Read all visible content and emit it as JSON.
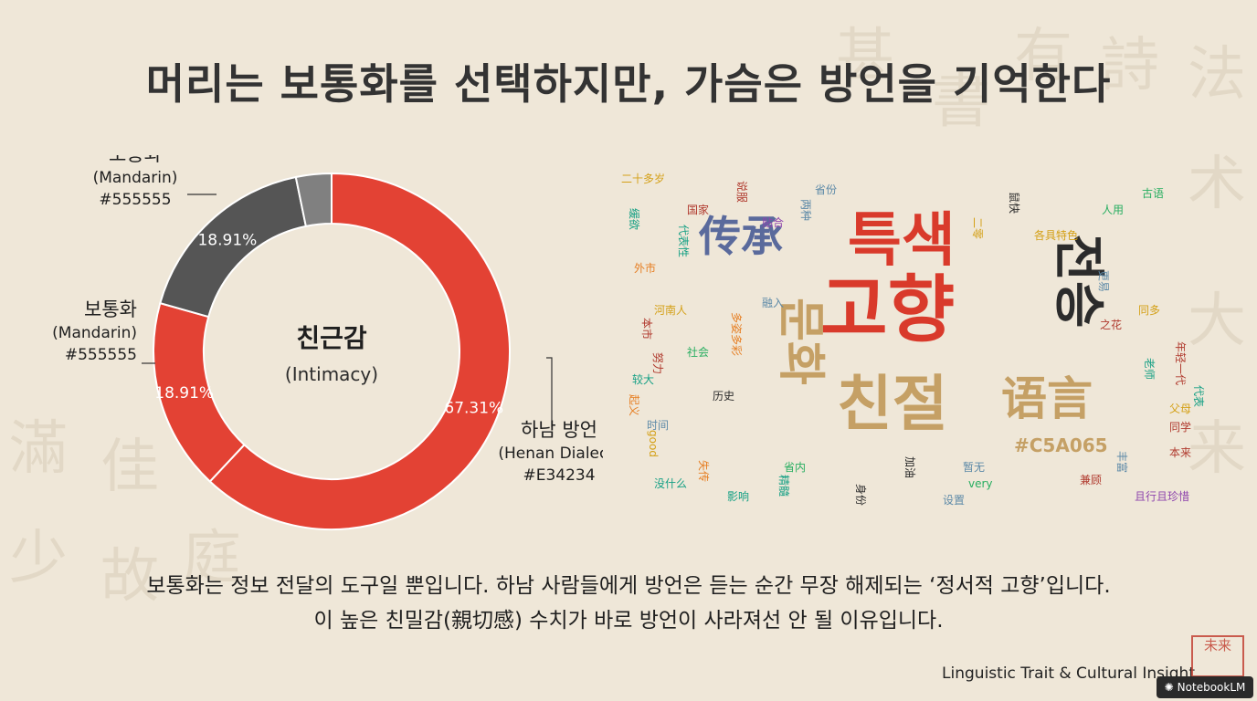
{
  "title": "머리는 보통화를 선택하지만, 가슴은 방언을 기억한다",
  "chart_data": {
    "type": "pie",
    "donut": true,
    "center_label": "친근감",
    "center_sublabel": "(Intimacy)",
    "slices": [
      {
        "value": 67.31,
        "value_label": "67.31%",
        "color": "#E34234",
        "label_lines": [
          "하남 방언",
          "(Henan Dialect)",
          "#E34234"
        ]
      },
      {
        "value": 18.91,
        "value_label": "18.91%",
        "color": "#E34234",
        "label_lines": [
          "보통화",
          "(Mandarin)",
          "#555555"
        ]
      },
      {
        "value": 18.91,
        "value_label": "18.91%",
        "color": "#555555",
        "label_lines": [
          "보통화",
          "(Mandarin)",
          "#555555"
        ]
      },
      {
        "value": 3.5,
        "value_label": "",
        "color": "#808080",
        "label_lines": []
      }
    ]
  },
  "word_cloud": {
    "words": [
      {
        "text": "특색",
        "color": "#d93a2b",
        "size": 64,
        "weight": "bold"
      },
      {
        "text": "고향",
        "color": "#d93a2b",
        "size": 80,
        "weight": "bold"
      },
      {
        "text": "친절",
        "color": "#c5a065",
        "size": 66,
        "weight": "bold"
      },
      {
        "text": "전승",
        "color": "#2b2b2b",
        "size": 56,
        "weight": "bold"
      },
      {
        "text": "문화",
        "color": "#c5a065",
        "size": 52,
        "weight": "bold"
      },
      {
        "text": "传承",
        "color": "#5a6a9c",
        "size": 46,
        "weight": "bold"
      },
      {
        "text": "语言",
        "color": "#c5a065",
        "size": 50,
        "weight": "bold"
      },
      {
        "text": "#C5A065",
        "color": "#c5a065",
        "size": 20,
        "weight": "bold"
      },
      {
        "text": "二十多岁",
        "color": "#d4a017",
        "size": 12
      },
      {
        "text": "说服",
        "color": "#b03a2e",
        "size": 12
      },
      {
        "text": "省份",
        "color": "#5d8aa8",
        "size": 12
      },
      {
        "text": "古语",
        "color": "#27ae60",
        "size": 12
      },
      {
        "text": "国家",
        "color": "#b03a2e",
        "size": 12
      },
      {
        "text": "两种",
        "color": "#5d8aa8",
        "size": 12
      },
      {
        "text": "贴合",
        "color": "#8e44ad",
        "size": 12
      },
      {
        "text": "鼠快",
        "color": "#2b2b2b",
        "size": 12
      },
      {
        "text": "人用",
        "color": "#27ae60",
        "size": 12
      },
      {
        "text": "缓欲",
        "color": "#16a085",
        "size": 12
      },
      {
        "text": "二零",
        "color": "#d4a017",
        "size": 12
      },
      {
        "text": "各具特色",
        "color": "#d4a017",
        "size": 12
      },
      {
        "text": "代表性",
        "color": "#16a085",
        "size": 12
      },
      {
        "text": "外市",
        "color": "#e67e22",
        "size": 12
      },
      {
        "text": "融入",
        "color": "#5d8aa8",
        "size": 12
      },
      {
        "text": "更易",
        "color": "#5d8aa8",
        "size": 12
      },
      {
        "text": "河南人",
        "color": "#d4a017",
        "size": 12
      },
      {
        "text": "同多",
        "color": "#d4a017",
        "size": 12
      },
      {
        "text": "之花",
        "color": "#b03a2e",
        "size": 12
      },
      {
        "text": "本市",
        "color": "#b03a2e",
        "size": 12
      },
      {
        "text": "多姿多彩",
        "color": "#e67e22",
        "size": 12
      },
      {
        "text": "社会",
        "color": "#27ae60",
        "size": 12
      },
      {
        "text": "努力",
        "color": "#b03a2e",
        "size": 12
      },
      {
        "text": "较大",
        "color": "#16a085",
        "size": 12
      },
      {
        "text": "历史",
        "color": "#2b2b2b",
        "size": 12
      },
      {
        "text": "老师",
        "color": "#16a085",
        "size": 12
      },
      {
        "text": "年轻一代",
        "color": "#b03a2e",
        "size": 12
      },
      {
        "text": "代表",
        "color": "#16a085",
        "size": 12
      },
      {
        "text": "起义",
        "color": "#e67e22",
        "size": 12
      },
      {
        "text": "时间",
        "color": "#5d8aa8",
        "size": 12
      },
      {
        "text": "good",
        "color": "#d4a017",
        "size": 12
      },
      {
        "text": "父母",
        "color": "#d4a017",
        "size": 12
      },
      {
        "text": "同学",
        "color": "#b03a2e",
        "size": 12
      },
      {
        "text": "暂无",
        "color": "#5d8aa8",
        "size": 12
      },
      {
        "text": "very",
        "color": "#27ae60",
        "size": 12
      },
      {
        "text": "加油",
        "color": "#2b2b2b",
        "size": 12
      },
      {
        "text": "失传",
        "color": "#e67e22",
        "size": 12
      },
      {
        "text": "省内",
        "color": "#27ae60",
        "size": 12
      },
      {
        "text": "没什么",
        "color": "#16a085",
        "size": 12
      },
      {
        "text": "设置",
        "color": "#5d8aa8",
        "size": 12
      },
      {
        "text": "兼顾",
        "color": "#b03a2e",
        "size": 12
      },
      {
        "text": "且行且珍惜",
        "color": "#8e44ad",
        "size": 12
      },
      {
        "text": "影响",
        "color": "#16a085",
        "size": 12
      },
      {
        "text": "本来",
        "color": "#b03a2e",
        "size": 12
      },
      {
        "text": "精髓",
        "color": "#16a085",
        "size": 12
      },
      {
        "text": "身份",
        "color": "#2b2b2b",
        "size": 12
      },
      {
        "text": "丰富",
        "color": "#5d8aa8",
        "size": 12
      }
    ]
  },
  "caption_lines": [
    "보통화는 정보 전달의 도구일 뿐입니다. 하남 사람들에게 방언은 듣는 순간 무장 해제되는 ‘정서적 고향’입니다.",
    "이 높은 친밀감(親切感) 수치가 바로 방언이 사라져선 안 될 이유입니다."
  ],
  "footer": "Linguistic Trait & Cultural Insight",
  "seal_text": "未来",
  "badge": "NotebookLM"
}
